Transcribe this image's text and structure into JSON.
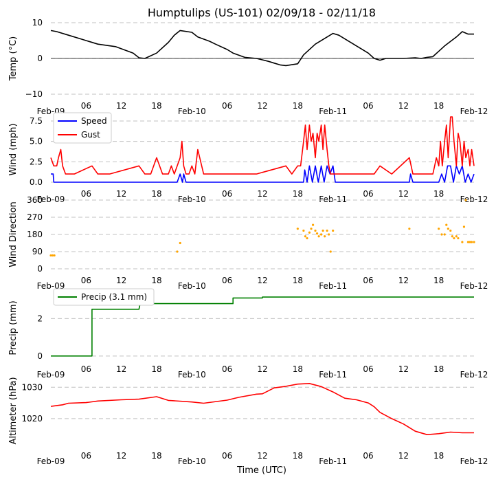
{
  "title": "Humptulips (US-101) 02/09/18 - 02/11/18",
  "xlabel": "Time (UTC)",
  "x_ticks": [
    "Feb-09",
    "06",
    "12",
    "18",
    "Feb-10",
    "06",
    "12",
    "18",
    "Feb-11",
    "06",
    "12",
    "18",
    "Feb-12"
  ],
  "x_tick_hours": [
    0,
    6,
    12,
    18,
    24,
    30,
    36,
    42,
    48,
    54,
    60,
    66,
    72
  ],
  "colors": {
    "temp": "#000000",
    "speed": "#0000ff",
    "gust": "#ff0000",
    "dir": "#ffa500",
    "precip": "#008000",
    "alt": "#ff0000",
    "grid": "#c0c0c0"
  },
  "chart_data": [
    {
      "type": "line",
      "ylabel": "Temp (°C)",
      "ylim": [
        -10,
        10
      ],
      "yticks": [
        "10",
        "0",
        "−10"
      ],
      "ytick_values": [
        10,
        0,
        -10
      ],
      "zero_line": true,
      "series": [
        {
          "name": "Temp",
          "x": [
            0,
            1,
            3,
            5,
            8,
            11,
            14,
            15,
            16,
            18,
            20,
            21,
            22,
            24,
            25,
            27,
            28,
            30,
            31,
            33,
            35,
            37,
            38,
            39,
            40,
            42,
            43,
            45,
            47,
            48,
            49,
            50,
            52,
            54,
            55,
            56,
            57,
            60,
            62,
            63,
            64,
            65,
            67,
            69,
            70,
            71,
            72
          ],
          "y": [
            7.8,
            7.5,
            6.5,
            5.5,
            4,
            3.3,
            1.5,
            0.2,
            0,
            1.5,
            4.5,
            6.5,
            7.8,
            7.3,
            6,
            4.8,
            4,
            2.5,
            1.5,
            0.3,
            0,
            -0.8,
            -1.3,
            -1.8,
            -2,
            -1.5,
            1,
            4,
            6,
            7,
            6.5,
            5.5,
            3.5,
            1.5,
            0,
            -0.5,
            0,
            0,
            0.2,
            0,
            0.3,
            0.5,
            3.5,
            6,
            7.5,
            6.8,
            6.8
          ]
        }
      ]
    },
    {
      "type": "line",
      "ylabel": "Wind (mph)",
      "ylim": [
        0,
        8
      ],
      "yticks": [
        "7.5",
        "5.0",
        "2.5",
        "0.0"
      ],
      "ytick_values": [
        7.5,
        5,
        2.5,
        0
      ],
      "legend": [
        "Speed",
        "Gust"
      ],
      "legend_position": "upper-left",
      "series": [
        {
          "name": "Speed",
          "x": [
            0,
            0.4,
            0.5,
            21.5,
            22,
            22.4,
            22.6,
            23,
            43,
            43.2,
            43.6,
            44,
            44.5,
            45,
            45.5,
            46,
            46.5,
            47,
            47.5,
            48,
            48.4,
            48.6,
            61,
            61.2,
            61.6,
            66,
            66.5,
            67,
            67.5,
            68,
            68.5,
            69,
            69.5,
            70,
            70.5,
            71,
            71.5,
            72
          ],
          "y": [
            1,
            1,
            0,
            0,
            1,
            0,
            1,
            0,
            0,
            1.5,
            0,
            2,
            0,
            2,
            0,
            2,
            0,
            2,
            1,
            2,
            0,
            0,
            0,
            1,
            0,
            0,
            1,
            0,
            2,
            2,
            0,
            2,
            1,
            2,
            0,
            1,
            0,
            1
          ]
        },
        {
          "name": "Gust",
          "x": [
            0,
            0.5,
            1,
            1.3,
            1.7,
            2,
            2.5,
            3,
            4,
            7,
            8,
            10,
            15,
            16,
            16.5,
            17,
            18,
            19,
            20,
            20.5,
            21,
            22,
            22.3,
            22.6,
            23,
            23.5,
            24,
            24.5,
            25,
            26,
            27,
            29,
            30,
            31,
            33,
            35,
            40,
            41,
            42,
            42.5,
            43,
            43.3,
            43.6,
            44,
            44.3,
            44.6,
            45,
            45.3,
            45.6,
            46,
            46.3,
            46.6,
            47,
            47.3,
            47.6,
            48,
            48.3,
            49,
            50,
            52,
            55,
            56,
            58,
            61,
            61.3,
            61.6,
            63,
            65,
            65.3,
            65.6,
            66,
            66.3,
            66.6,
            67,
            67.3,
            67.6,
            68,
            68.3,
            68.6,
            69,
            69.3,
            69.6,
            70,
            70.3,
            70.6,
            71,
            71.3,
            71.6,
            72
          ],
          "y": [
            3,
            2,
            2,
            3,
            4,
            2,
            1,
            1,
            1,
            2,
            1,
            1,
            2,
            1,
            1,
            1,
            3,
            1,
            1,
            2,
            1,
            3,
            5,
            2,
            1,
            1,
            2,
            1,
            4,
            1,
            1,
            1,
            1,
            1,
            1,
            1,
            2,
            1,
            2,
            2,
            5,
            7,
            4,
            7,
            5,
            6,
            3,
            6,
            5,
            7,
            4,
            7,
            4,
            2,
            1,
            1,
            1,
            1,
            1,
            1,
            1,
            2,
            1,
            3,
            2,
            1,
            1,
            1,
            2,
            3,
            2,
            5,
            2,
            5,
            7,
            3,
            8,
            8,
            5,
            2,
            6,
            5,
            2,
            5,
            3,
            4,
            2,
            4,
            2
          ]
        }
      ]
    },
    {
      "type": "scatter",
      "ylabel": "Wind Direction",
      "ylim": [
        0,
        360
      ],
      "yticks": [
        "360",
        "270",
        "180",
        "90",
        "0"
      ],
      "ytick_values": [
        360,
        270,
        180,
        90,
        0
      ],
      "series": [
        {
          "name": "Direction",
          "x": [
            0,
            0.3,
            0.6,
            21.5,
            22,
            42,
            43,
            43.3,
            43.6,
            44,
            44.3,
            44.6,
            45,
            45.3,
            45.6,
            46,
            46.3,
            46.6,
            47,
            47.3,
            47.6,
            48,
            61,
            66,
            66.5,
            67,
            67.3,
            67.6,
            68,
            68.3,
            68.6,
            69,
            69.3,
            70,
            70.3,
            70.6,
            71,
            71.3,
            71.6,
            72
          ],
          "y": [
            70,
            70,
            70,
            90,
            135,
            210,
            200,
            170,
            160,
            190,
            210,
            230,
            200,
            185,
            170,
            180,
            200,
            170,
            200,
            180,
            90,
            200,
            210,
            210,
            180,
            180,
            230,
            210,
            200,
            170,
            160,
            170,
            160,
            140,
            220,
            360,
            140,
            140,
            140,
            140
          ]
        }
      ]
    },
    {
      "type": "line",
      "ylabel": "Precip (mm)",
      "ylim": [
        -0.3,
        3.3
      ],
      "yticks": [
        "2",
        "0"
      ],
      "ytick_values": [
        2,
        0
      ],
      "legend": [
        "Precip (3.1 mm)"
      ],
      "legend_position": "upper-left",
      "series": [
        {
          "name": "Precip (3.1 mm)",
          "x": [
            0,
            7,
            7,
            15,
            15.2,
            24,
            31,
            31,
            36,
            36,
            72
          ],
          "y": [
            0,
            0,
            2.5,
            2.5,
            2.8,
            2.8,
            2.8,
            3.1,
            3.1,
            3.15,
            3.15
          ]
        }
      ]
    },
    {
      "type": "line",
      "ylabel": "Altimeter (hPa)",
      "ylim": [
        1011,
        1034
      ],
      "yticks": [
        "1030",
        "1020"
      ],
      "ytick_values": [
        1030,
        1020
      ],
      "series": [
        {
          "name": "Altimeter",
          "x": [
            0,
            2,
            3,
            6,
            8,
            12,
            15,
            18,
            20,
            24,
            26,
            30,
            32,
            35,
            36,
            38,
            40,
            42,
            44,
            46,
            48,
            50,
            52,
            54,
            55,
            56,
            58,
            60,
            62,
            64,
            66,
            68,
            70,
            72
          ],
          "y": [
            1023.9,
            1024.4,
            1024.9,
            1025.1,
            1025.6,
            1026,
            1026.2,
            1027,
            1025.8,
            1025.3,
            1024.9,
            1025.9,
            1026.8,
            1027.8,
            1027.9,
            1029.8,
            1030.3,
            1031,
            1031.2,
            1030.2,
            1028.5,
            1026.5,
            1026,
            1025,
            1023.8,
            1022,
            1020,
            1018.3,
            1016,
            1014.9,
            1015.2,
            1015.7,
            1015.5,
            1015.5
          ]
        }
      ]
    }
  ]
}
